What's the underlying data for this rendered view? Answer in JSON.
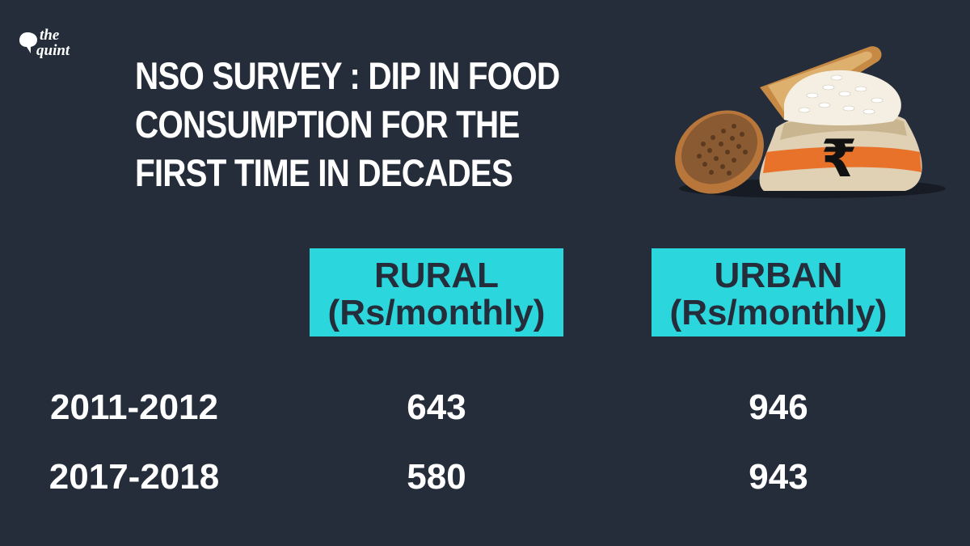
{
  "logo": {
    "line1": "the",
    "line2": "quint"
  },
  "title": "NSO SURVEY : DIP IN FOOD CONSUMPTION  FOR THE FIRST TIME IN DECADES",
  "colors": {
    "background": "#262d3a",
    "header_box": "#2bd6dc",
    "header_text": "#262d3a",
    "text": "#ffffff"
  },
  "illustration": {
    "icon": "rupee-grain-sack-icon",
    "symbol": "₹"
  },
  "chart_data": {
    "type": "table",
    "title": "NSO SURVEY : DIP IN FOOD CONSUMPTION  FOR THE FIRST TIME IN DECADES",
    "columns": [
      {
        "line1": "RURAL",
        "line2": "(Rs/monthly)"
      },
      {
        "line1": "URBAN",
        "line2": "(Rs/monthly)"
      }
    ],
    "rows": [
      {
        "label": "2011-2012",
        "values": [
          "643",
          "946"
        ]
      },
      {
        "label": "2017-2018",
        "values": [
          "580",
          "943"
        ]
      }
    ]
  }
}
